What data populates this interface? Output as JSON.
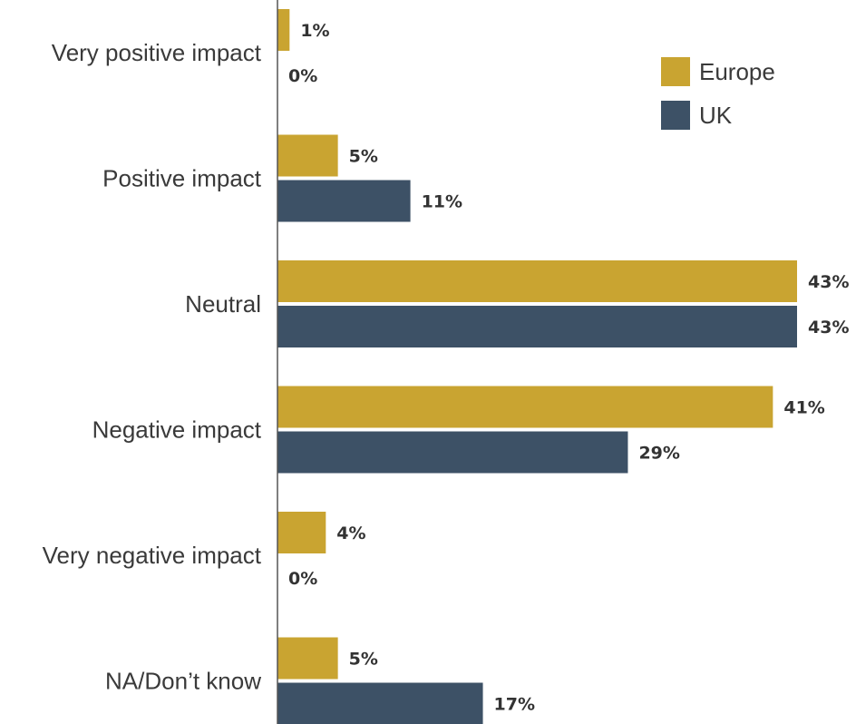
{
  "chart_data": {
    "type": "bar",
    "orientation": "horizontal",
    "categories": [
      "Very positive impact",
      "Positive impact",
      "Neutral",
      "Negative impact",
      "Very negative impact",
      "NA/Don’t know"
    ],
    "series": [
      {
        "name": "Europe",
        "values": [
          1,
          5,
          43,
          41,
          4,
          5
        ],
        "labels": [
          "1%",
          "5%",
          "43%",
          "41%",
          "4%",
          "5%"
        ],
        "color": "#c9a431"
      },
      {
        "name": "UK",
        "values": [
          0,
          11,
          43,
          29,
          0,
          17
        ],
        "labels": [
          "0%",
          "11%",
          "43%",
          "29%",
          "0%",
          "17%"
        ],
        "color": "#3d5166"
      }
    ],
    "title": "",
    "xlabel": "",
    "ylabel": "",
    "xlim": [
      0,
      43
    ],
    "grid": false,
    "legend_position": "top-right"
  }
}
